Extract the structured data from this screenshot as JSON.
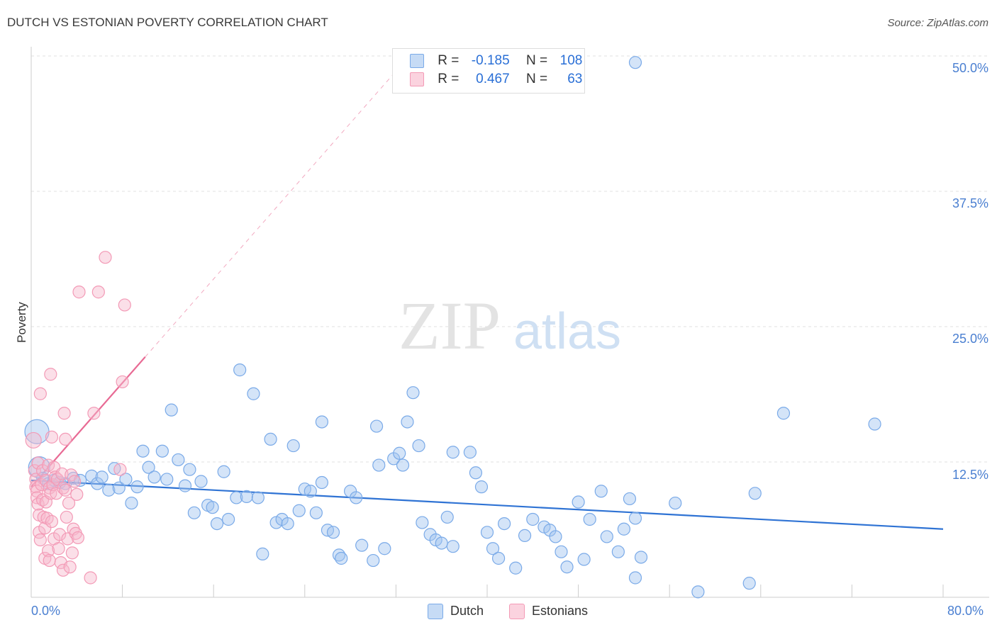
{
  "title": "DUTCH VS ESTONIAN POVERTY CORRELATION CHART",
  "source": "Source: ZipAtlas.com",
  "watermark": {
    "zip": "ZIP",
    "atlas": "atlas"
  },
  "legend": {
    "rows": [
      {
        "r_label": "R =",
        "r_value": "-0.185",
        "n_label": "N =",
        "n_value": "108",
        "color": "#a8c8f0"
      },
      {
        "r_label": "R =",
        "r_value": "0.467",
        "n_label": "N =",
        "n_value": "63",
        "color": "#f7b9cc"
      }
    ]
  },
  "chart_data": {
    "type": "scatter",
    "title": "DUTCH VS ESTONIAN POVERTY CORRELATION CHART",
    "xlabel": "",
    "ylabel": "Poverty",
    "xlim": [
      0,
      80
    ],
    "ylim": [
      0,
      50
    ],
    "x_tick_labels": [
      "0.0%",
      "80.0%"
    ],
    "y_ticks": [
      12.5,
      25.0,
      37.5,
      50.0
    ],
    "y_tick_labels": [
      "12.5%",
      "25.0%",
      "37.5%",
      "50.0%"
    ],
    "grid": "horizontal dashed",
    "legend_position": "top-center",
    "series": [
      {
        "name": "Dutch",
        "color": "#7aaae8",
        "trend": {
          "x": [
            0,
            80
          ],
          "y": [
            10.8,
            6.3
          ]
        },
        "points": [
          [
            0.5,
            15.3
          ],
          [
            0.7,
            12.0
          ],
          [
            1.0,
            11.0
          ],
          [
            1.5,
            10.5
          ],
          [
            2.0,
            10.8
          ],
          [
            2.5,
            10.6
          ],
          [
            3.0,
            10.5
          ],
          [
            3.7,
            11.0
          ],
          [
            4.3,
            10.8
          ],
          [
            5.3,
            11.2
          ],
          [
            5.8,
            10.5
          ],
          [
            6.2,
            11.1
          ],
          [
            6.8,
            9.9
          ],
          [
            7.3,
            11.9
          ],
          [
            7.7,
            10.1
          ],
          [
            8.3,
            10.9
          ],
          [
            8.8,
            8.7
          ],
          [
            9.3,
            10.2
          ],
          [
            9.8,
            13.5
          ],
          [
            10.3,
            12.0
          ],
          [
            10.8,
            11.1
          ],
          [
            11.5,
            13.5
          ],
          [
            11.9,
            10.9
          ],
          [
            12.3,
            17.3
          ],
          [
            12.9,
            12.7
          ],
          [
            13.5,
            10.3
          ],
          [
            13.9,
            11.8
          ],
          [
            14.3,
            7.8
          ],
          [
            14.9,
            10.7
          ],
          [
            15.5,
            8.5
          ],
          [
            15.9,
            8.3
          ],
          [
            16.3,
            6.8
          ],
          [
            16.9,
            11.6
          ],
          [
            17.3,
            7.2
          ],
          [
            18.0,
            9.2
          ],
          [
            18.3,
            21.0
          ],
          [
            18.9,
            9.3
          ],
          [
            19.5,
            18.8
          ],
          [
            19.9,
            9.2
          ],
          [
            20.3,
            4.0
          ],
          [
            21.0,
            14.6
          ],
          [
            21.5,
            6.9
          ],
          [
            22.0,
            7.2
          ],
          [
            22.5,
            6.8
          ],
          [
            23.0,
            14.0
          ],
          [
            23.5,
            8.0
          ],
          [
            24.0,
            10.0
          ],
          [
            24.5,
            9.8
          ],
          [
            25.0,
            7.8
          ],
          [
            25.5,
            10.6
          ],
          [
            26.0,
            6.2
          ],
          [
            26.5,
            6.0
          ],
          [
            27.0,
            3.9
          ],
          [
            27.2,
            3.6
          ],
          [
            28.0,
            9.8
          ],
          [
            28.5,
            9.2
          ],
          [
            29.0,
            4.8
          ],
          [
            30.0,
            3.4
          ],
          [
            30.3,
            15.8
          ],
          [
            30.5,
            12.2
          ],
          [
            31.0,
            4.5
          ],
          [
            31.8,
            12.8
          ],
          [
            32.3,
            13.3
          ],
          [
            32.6,
            12.2
          ],
          [
            33.0,
            16.2
          ],
          [
            33.5,
            18.9
          ],
          [
            34.0,
            14.0
          ],
          [
            34.3,
            6.9
          ],
          [
            35.0,
            5.8
          ],
          [
            35.5,
            5.3
          ],
          [
            36.0,
            5.0
          ],
          [
            36.5,
            7.4
          ],
          [
            37.0,
            4.7
          ],
          [
            38.5,
            13.4
          ],
          [
            39.0,
            11.5
          ],
          [
            39.5,
            10.2
          ],
          [
            40.0,
            6.0
          ],
          [
            40.5,
            4.5
          ],
          [
            41.0,
            3.6
          ],
          [
            41.5,
            6.8
          ],
          [
            42.5,
            2.7
          ],
          [
            43.3,
            5.7
          ],
          [
            44.0,
            7.2
          ],
          [
            45.0,
            6.5
          ],
          [
            45.5,
            6.2
          ],
          [
            46.0,
            5.6
          ],
          [
            46.5,
            4.2
          ],
          [
            47.0,
            2.8
          ],
          [
            48.0,
            8.8
          ],
          [
            48.5,
            3.5
          ],
          [
            49.0,
            7.2
          ],
          [
            50.0,
            9.8
          ],
          [
            50.5,
            5.6
          ],
          [
            51.5,
            4.2
          ],
          [
            52.0,
            6.3
          ],
          [
            52.5,
            9.1
          ],
          [
            53.0,
            7.3
          ],
          [
            53.5,
            3.7
          ],
          [
            53.0,
            1.8
          ],
          [
            53.0,
            49.4
          ],
          [
            56.5,
            8.7
          ],
          [
            58.5,
            0.5
          ],
          [
            63.0,
            1.3
          ],
          [
            63.5,
            9.6
          ],
          [
            66.0,
            17.0
          ],
          [
            74.0,
            16.0
          ],
          [
            25.5,
            16.2
          ],
          [
            37.0,
            13.4
          ]
        ]
      },
      {
        "name": "Estonians",
        "color": "#f39ab6",
        "trend": {
          "x": [
            0,
            10
          ],
          "y": [
            10.2,
            22.2
          ]
        },
        "points": [
          [
            0.2,
            14.5
          ],
          [
            0.3,
            11.7
          ],
          [
            0.4,
            10.9
          ],
          [
            0.4,
            10.2
          ],
          [
            0.5,
            9.8
          ],
          [
            0.5,
            9.2
          ],
          [
            0.6,
            12.4
          ],
          [
            0.6,
            8.6
          ],
          [
            0.7,
            7.6
          ],
          [
            0.7,
            6.0
          ],
          [
            0.8,
            5.3
          ],
          [
            0.8,
            18.8
          ],
          [
            0.9,
            10.4
          ],
          [
            1.0,
            11.7
          ],
          [
            1.0,
            9.0
          ],
          [
            1.1,
            7.4
          ],
          [
            1.2,
            6.4
          ],
          [
            1.2,
            3.6
          ],
          [
            1.3,
            10.8
          ],
          [
            1.3,
            8.8
          ],
          [
            1.4,
            7.3
          ],
          [
            1.5,
            12.2
          ],
          [
            1.5,
            4.3
          ],
          [
            1.6,
            10.1
          ],
          [
            1.6,
            3.4
          ],
          [
            1.7,
            9.6
          ],
          [
            1.7,
            20.6
          ],
          [
            1.8,
            14.8
          ],
          [
            1.8,
            7.0
          ],
          [
            1.9,
            10.4
          ],
          [
            2.0,
            12.0
          ],
          [
            2.0,
            5.4
          ],
          [
            2.1,
            11.1
          ],
          [
            2.2,
            9.6
          ],
          [
            2.3,
            10.9
          ],
          [
            2.4,
            4.5
          ],
          [
            2.5,
            5.8
          ],
          [
            2.6,
            3.2
          ],
          [
            2.7,
            11.4
          ],
          [
            2.8,
            10.1
          ],
          [
            2.8,
            2.5
          ],
          [
            2.9,
            17.0
          ],
          [
            3.0,
            9.9
          ],
          [
            3.0,
            14.6
          ],
          [
            3.1,
            7.4
          ],
          [
            3.2,
            5.4
          ],
          [
            3.3,
            8.7
          ],
          [
            3.4,
            2.8
          ],
          [
            3.5,
            11.3
          ],
          [
            3.6,
            4.1
          ],
          [
            3.7,
            6.3
          ],
          [
            3.8,
            10.7
          ],
          [
            3.9,
            5.9
          ],
          [
            4.0,
            9.5
          ],
          [
            4.1,
            5.5
          ],
          [
            4.2,
            28.2
          ],
          [
            5.2,
            1.8
          ],
          [
            5.5,
            17.0
          ],
          [
            5.9,
            28.2
          ],
          [
            6.5,
            31.4
          ],
          [
            7.8,
            11.8
          ],
          [
            8.0,
            19.9
          ],
          [
            8.2,
            27.0
          ]
        ]
      }
    ]
  },
  "bottom_legend": [
    {
      "label": "Dutch",
      "color": "#a8c8f0"
    },
    {
      "label": "Estonians",
      "color": "#f7b9cc"
    }
  ]
}
